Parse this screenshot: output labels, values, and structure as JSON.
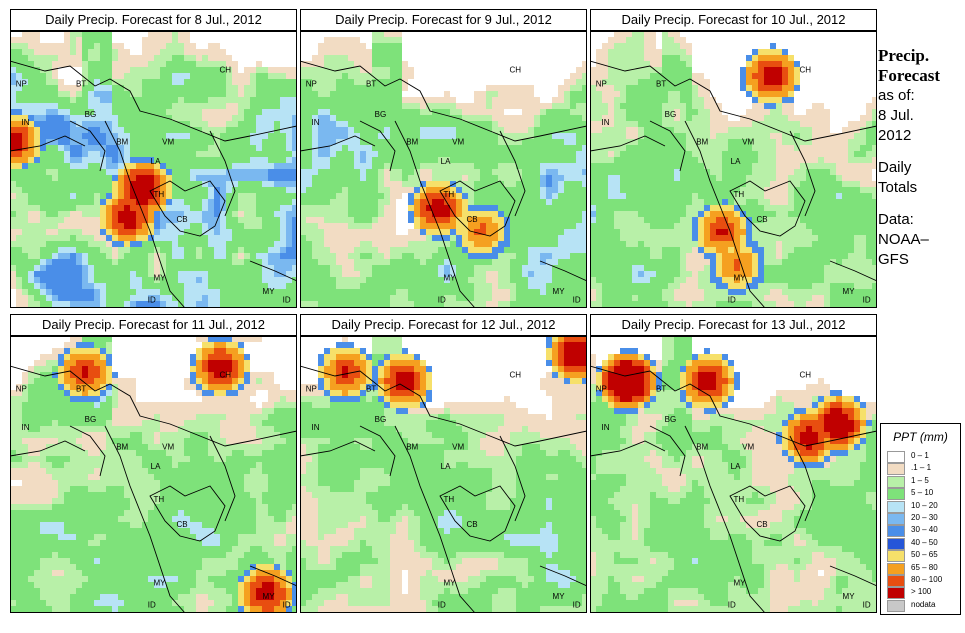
{
  "panels": [
    {
      "title": "Daily Precip. Forecast for  8 Jul., 2012",
      "seed": 11,
      "wet": 1.0,
      "hot": [
        [
          0.45,
          0.55,
          0.6
        ],
        [
          0.4,
          0.65,
          0.5
        ],
        [
          0.0,
          0.38,
          0.5
        ]
      ]
    },
    {
      "title": "Daily Precip. Forecast for  9 Jul., 2012",
      "seed": 23,
      "wet": 0.8,
      "hot": [
        [
          0.47,
          0.62,
          0.5
        ],
        [
          0.62,
          0.7,
          0.3
        ]
      ]
    },
    {
      "title": "Daily Precip. Forecast for  10 Jul., 2012",
      "seed": 37,
      "wet": 0.7,
      "hot": [
        [
          0.62,
          0.15,
          0.5
        ],
        [
          0.45,
          0.7,
          0.4
        ],
        [
          0.5,
          0.82,
          0.3
        ]
      ]
    },
    {
      "title": "Daily Precip. Forecast for  11 Jul., 2012",
      "seed": 41,
      "wet": 0.75,
      "hot": [
        [
          0.72,
          0.1,
          0.5
        ],
        [
          0.25,
          0.12,
          0.4
        ],
        [
          0.88,
          0.9,
          0.5
        ]
      ]
    },
    {
      "title": "Daily Precip. Forecast for  12 Jul., 2012",
      "seed": 53,
      "wet": 0.7,
      "hot": [
        [
          0.95,
          0.05,
          0.6
        ],
        [
          0.35,
          0.15,
          0.5
        ],
        [
          0.15,
          0.12,
          0.4
        ]
      ]
    },
    {
      "title": "Daily Precip. Forecast for  13 Jul., 2012",
      "seed": 67,
      "wet": 0.65,
      "hot": [
        [
          0.12,
          0.15,
          0.8
        ],
        [
          0.4,
          0.15,
          0.5
        ],
        [
          0.85,
          0.3,
          0.6
        ],
        [
          0.75,
          0.35,
          0.5
        ]
      ]
    }
  ],
  "map_labels": [
    "CH",
    "NP",
    "BT",
    "IN",
    "BG",
    "BM",
    "VM",
    "LA",
    "TH",
    "CB",
    "MY",
    "ID",
    "MY",
    "ID"
  ],
  "side": {
    "line1": "Precip.",
    "line2": "Forecast",
    "line3": "as of:",
    "line4": "8 Jul.",
    "line5": "2012",
    "line6": "Daily",
    "line7": "Totals",
    "line8": "Data:",
    "line9": "NOAA–",
    "line10": "GFS"
  },
  "legend": {
    "title": "PPT (mm)",
    "items": [
      {
        "label": "0 – 1",
        "color": "#ffffff"
      },
      {
        "label": ".1 – 1",
        "color": "#f2dcc3"
      },
      {
        "label": "1 – 5",
        "color": "#b8f0a8"
      },
      {
        "label": "5 – 10",
        "color": "#7ee27a"
      },
      {
        "label": "10 – 20",
        "color": "#b7e3f5"
      },
      {
        "label": "20 – 30",
        "color": "#7ab8f0"
      },
      {
        "label": "30 – 40",
        "color": "#4a8ee8"
      },
      {
        "label": "40 – 50",
        "color": "#2556d8"
      },
      {
        "label": "50 – 65",
        "color": "#f6e06a"
      },
      {
        "label": "65 – 80",
        "color": "#f5a020"
      },
      {
        "label": "80 – 100",
        "color": "#e84e10"
      },
      {
        "label": "> 100",
        "color": "#c00000"
      },
      {
        "label": "nodata",
        "color": "#c8c8c8"
      }
    ]
  }
}
